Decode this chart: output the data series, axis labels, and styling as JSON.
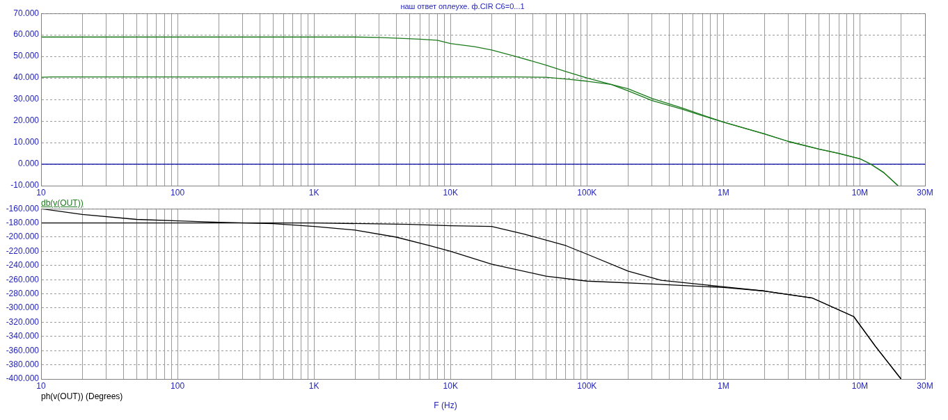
{
  "chart_data": [
    {
      "type": "line",
      "title": "наш ответ оплеухе. ф.CIR C6=0...1",
      "annotations": [
        "db(v(OUT))"
      ],
      "log": "x",
      "grid": true,
      "xlim": [
        10,
        30000000
      ],
      "xticks": [
        {
          "value": 10,
          "label": "10"
        },
        {
          "value": 20,
          "label": null
        },
        {
          "value": 30,
          "label": null
        },
        {
          "value": 40,
          "label": null
        },
        {
          "value": 50,
          "label": null
        },
        {
          "value": 60,
          "label": null
        },
        {
          "value": 70,
          "label": null
        },
        {
          "value": 80,
          "label": null
        },
        {
          "value": 90,
          "label": null
        },
        {
          "value": 100,
          "label": "100"
        },
        {
          "value": 200,
          "label": null
        },
        {
          "value": 300,
          "label": null
        },
        {
          "value": 400,
          "label": null
        },
        {
          "value": 500,
          "label": null
        },
        {
          "value": 600,
          "label": null
        },
        {
          "value": 700,
          "label": null
        },
        {
          "value": 800,
          "label": null
        },
        {
          "value": 900,
          "label": null
        },
        {
          "value": 1000,
          "label": "1K"
        },
        {
          "value": 2000,
          "label": null
        },
        {
          "value": 3000,
          "label": null
        },
        {
          "value": 4000,
          "label": null
        },
        {
          "value": 5000,
          "label": null
        },
        {
          "value": 6000,
          "label": null
        },
        {
          "value": 7000,
          "label": null
        },
        {
          "value": 8000,
          "label": null
        },
        {
          "value": 9000,
          "label": null
        },
        {
          "value": 10000,
          "label": "10K"
        },
        {
          "value": 20000,
          "label": null
        },
        {
          "value": 30000,
          "label": null
        },
        {
          "value": 40000,
          "label": null
        },
        {
          "value": 50000,
          "label": null
        },
        {
          "value": 60000,
          "label": null
        },
        {
          "value": 70000,
          "label": null
        },
        {
          "value": 80000,
          "label": null
        },
        {
          "value": 90000,
          "label": null
        },
        {
          "value": 100000,
          "label": "100K"
        },
        {
          "value": 200000,
          "label": null
        },
        {
          "value": 300000,
          "label": null
        },
        {
          "value": 400000,
          "label": null
        },
        {
          "value": 500000,
          "label": null
        },
        {
          "value": 600000,
          "label": null
        },
        {
          "value": 700000,
          "label": null
        },
        {
          "value": 800000,
          "label": null
        },
        {
          "value": 900000,
          "label": null
        },
        {
          "value": 1000000,
          "label": "1M"
        },
        {
          "value": 2000000,
          "label": null
        },
        {
          "value": 3000000,
          "label": null
        },
        {
          "value": 4000000,
          "label": null
        },
        {
          "value": 5000000,
          "label": null
        },
        {
          "value": 6000000,
          "label": null
        },
        {
          "value": 7000000,
          "label": null
        },
        {
          "value": 8000000,
          "label": null
        },
        {
          "value": 9000000,
          "label": null
        },
        {
          "value": 10000000,
          "label": "10M"
        },
        {
          "value": 20000000,
          "label": null
        },
        {
          "value": 30000000,
          "label": "30M"
        }
      ],
      "ylim": [
        -10,
        70
      ],
      "yticks": [
        {
          "value": -10,
          "label": "-10.000"
        },
        {
          "value": 0,
          "label": "0.000"
        },
        {
          "value": 10,
          "label": "10.000"
        },
        {
          "value": 20,
          "label": "20.000"
        },
        {
          "value": 30,
          "label": "30.000"
        },
        {
          "value": 40,
          "label": "40.000"
        },
        {
          "value": 50,
          "label": "50.000"
        },
        {
          "value": 60,
          "label": "60.000"
        },
        {
          "value": 70,
          "label": "70.000"
        }
      ],
      "ref_lines": [
        {
          "axis": "y",
          "value": 0,
          "color": "#0000a0"
        }
      ],
      "series": [
        {
          "color": "#1b7a1b",
          "x": [
            10,
            100,
            1000,
            2000,
            3000,
            4000,
            6000,
            8000,
            10000,
            15000,
            20000,
            30000,
            50000,
            70000,
            100000,
            150000,
            200000,
            300000,
            500000,
            700000,
            1000000,
            2000000,
            3000000,
            5000000,
            7000000,
            10000000,
            12000000,
            15000000,
            19000000
          ],
          "values": [
            59,
            59,
            59,
            59,
            58.8,
            58.5,
            58,
            57.5,
            56,
            54.5,
            53,
            50,
            46,
            43,
            40,
            37,
            34,
            29.5,
            25.5,
            22.5,
            19.5,
            14,
            10.5,
            7,
            5,
            2.5,
            0,
            -4,
            -10
          ]
        },
        {
          "color": "#1b7a1b",
          "x": [
            10,
            12,
            100,
            1000,
            10000,
            30000,
            50000,
            70000,
            100000,
            150000,
            200000,
            300000,
            500000,
            1000000,
            2000000,
            3000000,
            5000000,
            7000000,
            10000000,
            12000000,
            15000000,
            19000000
          ],
          "values": [
            40.3,
            40.5,
            40.5,
            40.5,
            40.5,
            40.5,
            40.3,
            39.5,
            38.5,
            37,
            35,
            30.5,
            26,
            19.5,
            14,
            10.5,
            7,
            5,
            2.5,
            0,
            -4,
            -10
          ]
        }
      ]
    },
    {
      "type": "line",
      "xlabel": "F (Hz)",
      "annotations": [
        "ph(v(OUT)) (Degrees)"
      ],
      "log": "x",
      "grid": true,
      "xlim": [
        10,
        30000000
      ],
      "xticks": [
        {
          "value": 10,
          "label": "10"
        },
        {
          "value": 20,
          "label": null
        },
        {
          "value": 30,
          "label": null
        },
        {
          "value": 40,
          "label": null
        },
        {
          "value": 50,
          "label": null
        },
        {
          "value": 60,
          "label": null
        },
        {
          "value": 70,
          "label": null
        },
        {
          "value": 80,
          "label": null
        },
        {
          "value": 90,
          "label": null
        },
        {
          "value": 100,
          "label": "100"
        },
        {
          "value": 200,
          "label": null
        },
        {
          "value": 300,
          "label": null
        },
        {
          "value": 400,
          "label": null
        },
        {
          "value": 500,
          "label": null
        },
        {
          "value": 600,
          "label": null
        },
        {
          "value": 700,
          "label": null
        },
        {
          "value": 800,
          "label": null
        },
        {
          "value": 900,
          "label": null
        },
        {
          "value": 1000,
          "label": "1K"
        },
        {
          "value": 2000,
          "label": null
        },
        {
          "value": 3000,
          "label": null
        },
        {
          "value": 4000,
          "label": null
        },
        {
          "value": 5000,
          "label": null
        },
        {
          "value": 6000,
          "label": null
        },
        {
          "value": 7000,
          "label": null
        },
        {
          "value": 8000,
          "label": null
        },
        {
          "value": 9000,
          "label": null
        },
        {
          "value": 10000,
          "label": "10K"
        },
        {
          "value": 20000,
          "label": null
        },
        {
          "value": 30000,
          "label": null
        },
        {
          "value": 40000,
          "label": null
        },
        {
          "value": 50000,
          "label": null
        },
        {
          "value": 60000,
          "label": null
        },
        {
          "value": 70000,
          "label": null
        },
        {
          "value": 80000,
          "label": null
        },
        {
          "value": 90000,
          "label": null
        },
        {
          "value": 100000,
          "label": "100K"
        },
        {
          "value": 200000,
          "label": null
        },
        {
          "value": 300000,
          "label": null
        },
        {
          "value": 400000,
          "label": null
        },
        {
          "value": 500000,
          "label": null
        },
        {
          "value": 600000,
          "label": null
        },
        {
          "value": 700000,
          "label": null
        },
        {
          "value": 800000,
          "label": null
        },
        {
          "value": 900000,
          "label": null
        },
        {
          "value": 1000000,
          "label": "1M"
        },
        {
          "value": 2000000,
          "label": null
        },
        {
          "value": 3000000,
          "label": null
        },
        {
          "value": 4000000,
          "label": null
        },
        {
          "value": 5000000,
          "label": null
        },
        {
          "value": 6000000,
          "label": null
        },
        {
          "value": 7000000,
          "label": null
        },
        {
          "value": 8000000,
          "label": null
        },
        {
          "value": 9000000,
          "label": null
        },
        {
          "value": 10000000,
          "label": "10M"
        },
        {
          "value": 20000000,
          "label": null
        },
        {
          "value": 30000000,
          "label": "30M"
        }
      ],
      "ylim": [
        -400,
        -160
      ],
      "yticks": [
        {
          "value": -400,
          "label": "-400.000"
        },
        {
          "value": -380,
          "label": "-380.000"
        },
        {
          "value": -360,
          "label": "-360.000"
        },
        {
          "value": -340,
          "label": "-340.000"
        },
        {
          "value": -320,
          "label": "-320.000"
        },
        {
          "value": -300,
          "label": "-300.000"
        },
        {
          "value": -280,
          "label": "-280.000"
        },
        {
          "value": -260,
          "label": "-260.000"
        },
        {
          "value": -240,
          "label": "-240.000"
        },
        {
          "value": -220,
          "label": "-220.000"
        },
        {
          "value": -200,
          "label": "-200.000"
        },
        {
          "value": -180,
          "label": "-180.000"
        },
        {
          "value": -160,
          "label": "-160.000"
        }
      ],
      "series": [
        {
          "color": "#000000",
          "x": [
            10,
            20,
            50,
            100,
            200,
            500,
            1000,
            2000,
            4000,
            7000,
            10000,
            20000,
            50000,
            100000,
            300000,
            1000000,
            2000000,
            4500000,
            9000000,
            13000000,
            20000000
          ],
          "values": [
            -160,
            -168,
            -175,
            -177,
            -179,
            -181,
            -185,
            -190,
            -200,
            -212,
            -220,
            -238,
            -255,
            -262,
            -266,
            -271,
            -276,
            -286,
            -312,
            -354,
            -400
          ]
        },
        {
          "color": "#000000",
          "x": [
            10,
            1000,
            5000,
            10000,
            20000,
            35000,
            70000,
            100000,
            200000,
            350000,
            1000000,
            2000000,
            4500000,
            9000000,
            13000000,
            20000000
          ],
          "values": [
            -180,
            -180,
            -182,
            -184,
            -185,
            -196,
            -212,
            -224,
            -248,
            -261,
            -270,
            -276,
            -286,
            -312,
            -354,
            -400
          ]
        }
      ]
    }
  ]
}
